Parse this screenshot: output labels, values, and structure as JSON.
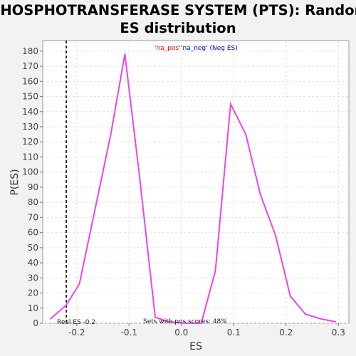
{
  "chart_data": {
    "type": "line",
    "title_line1": "PHOSPHOTRANSFERASE SYSTEM (PTS): Random",
    "title_line2": "ES distribution",
    "xlabel": "ES",
    "ylabel": "P(ES)",
    "xlim": [
      -0.265,
      0.32
    ],
    "ylim": [
      0,
      187
    ],
    "x_ticks": [
      -0.2,
      -0.1,
      0.0,
      0.1,
      0.2,
      0.3
    ],
    "x_tick_labels": [
      "-0.2",
      "-0.1",
      "0.0",
      "0.1",
      "0.2",
      "0.3"
    ],
    "y_ticks": [
      0,
      10,
      20,
      30,
      40,
      50,
      60,
      70,
      80,
      90,
      100,
      110,
      120,
      130,
      140,
      150,
      160,
      170,
      180
    ],
    "grid": true,
    "legend": {
      "pos_label": "'na_pos'",
      "neg_label": "'na_neg' (Neg ES)",
      "pos_color": "#ff0000",
      "neg_color": "#0000cc",
      "placement": "top-center"
    },
    "series": [
      {
        "color": "#ee44ee",
        "x": [
          -0.25,
          -0.22,
          -0.195,
          -0.135,
          -0.108,
          -0.08,
          -0.05,
          -0.025,
          0.008,
          0.038,
          0.065,
          0.094,
          0.123,
          0.151,
          0.18,
          0.208,
          0.237,
          0.265,
          0.294
        ],
        "y": [
          3,
          12,
          26,
          125,
          178,
          97,
          4,
          1,
          0,
          0,
          35,
          145,
          125,
          85,
          58,
          18,
          6,
          3,
          1
        ]
      }
    ],
    "real_es": -0.22,
    "real_es_label": "Real ES -0.2",
    "annotation": "Sets with pos scores: 48%"
  }
}
